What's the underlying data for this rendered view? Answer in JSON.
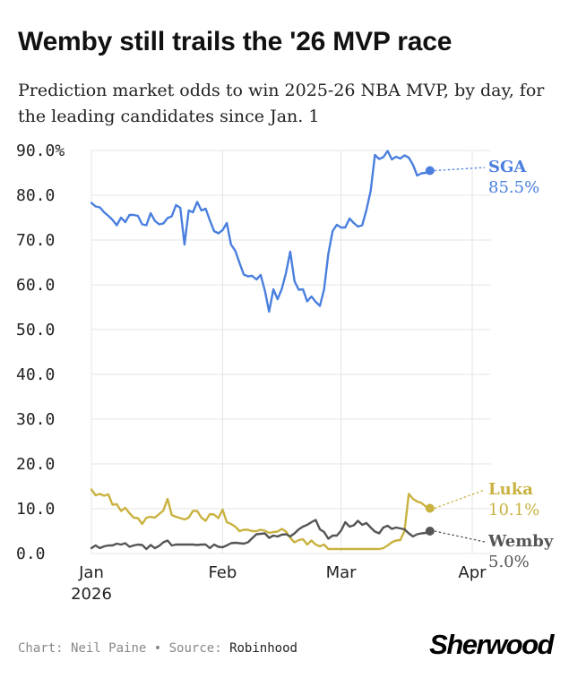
{
  "page": {
    "title": "Wemby still trails the '26 MVP race",
    "subtitle": "Prediction market odds to win 2025-26 NBA MVP, by day, for the leading candidates since Jan. 1",
    "credit_label": "Chart:",
    "credit_name": "Neil Paine",
    "separator": "•",
    "source_label": "Source:",
    "source_name": "Robinhood",
    "brand": "Sherwood"
  },
  "chart_data": {
    "type": "line",
    "title": "Wemby still trails the '26 MVP race",
    "ylim": [
      0,
      90
    ],
    "y_ticks": [
      {
        "value": 0,
        "label": "0.0"
      },
      {
        "value": 10,
        "label": "10.0"
      },
      {
        "value": 20,
        "label": "20.0"
      },
      {
        "value": 30,
        "label": "30.0"
      },
      {
        "value": 40,
        "label": "40.0"
      },
      {
        "value": 50,
        "label": "50.0"
      },
      {
        "value": 60,
        "label": "60.0"
      },
      {
        "value": 70,
        "label": "70.0"
      },
      {
        "value": 80,
        "label": "80.0"
      },
      {
        "value": 90,
        "label": "90.0%"
      }
    ],
    "x_unit": "day of 2026 (Jan 1 = 0)",
    "xlim": [
      0,
      90
    ],
    "x_ticks": [
      {
        "value": 0,
        "label": "Jan",
        "sublabel": "2026"
      },
      {
        "value": 31,
        "label": "Feb",
        "sublabel": ""
      },
      {
        "value": 59,
        "label": "Mar",
        "sublabel": ""
      },
      {
        "value": 90,
        "label": "Apr",
        "sublabel": ""
      }
    ],
    "series": [
      {
        "name": "SGA",
        "color": "#4a7fde",
        "end_label": "SGA",
        "end_value": "85.5%",
        "points": [
          [
            0,
            78.3
          ],
          [
            1,
            77.5
          ],
          [
            2,
            77.3
          ],
          [
            3,
            76.2
          ],
          [
            4,
            75.4
          ],
          [
            5,
            74.5
          ],
          [
            6,
            73.3
          ],
          [
            7,
            75.0
          ],
          [
            8,
            74.0
          ],
          [
            9,
            75.6
          ],
          [
            10,
            75.6
          ],
          [
            11,
            75.4
          ],
          [
            12,
            73.5
          ],
          [
            13,
            73.3
          ],
          [
            14,
            76.0
          ],
          [
            15,
            74.3
          ],
          [
            16,
            73.5
          ],
          [
            17,
            73.7
          ],
          [
            18,
            74.9
          ],
          [
            19,
            75.3
          ],
          [
            20,
            77.8
          ],
          [
            21,
            77.2
          ],
          [
            22,
            69.0
          ],
          [
            23,
            76.6
          ],
          [
            24,
            76.2
          ],
          [
            25,
            78.5
          ],
          [
            26,
            76.6
          ],
          [
            27,
            77.0
          ],
          [
            28,
            74.4
          ],
          [
            29,
            72.0
          ],
          [
            30,
            71.5
          ],
          [
            31,
            72.2
          ],
          [
            32,
            73.8
          ],
          [
            33,
            69.0
          ],
          [
            34,
            67.6
          ],
          [
            35,
            64.9
          ],
          [
            36,
            62.3
          ],
          [
            37,
            61.9
          ],
          [
            38,
            62.0
          ],
          [
            39,
            61.2
          ],
          [
            40,
            62.2
          ],
          [
            41,
            58.7
          ],
          [
            42,
            54.0
          ],
          [
            43,
            59.0
          ],
          [
            44,
            56.8
          ],
          [
            45,
            59.1
          ],
          [
            46,
            62.7
          ],
          [
            47,
            67.4
          ],
          [
            48,
            60.8
          ],
          [
            49,
            58.9
          ],
          [
            50,
            59.0
          ],
          [
            51,
            56.3
          ],
          [
            52,
            57.4
          ],
          [
            53,
            56.2
          ],
          [
            54,
            55.3
          ],
          [
            55,
            59.0
          ],
          [
            56,
            66.9
          ],
          [
            57,
            72.0
          ],
          [
            58,
            73.4
          ],
          [
            59,
            72.8
          ],
          [
            60,
            72.8
          ],
          [
            61,
            74.8
          ],
          [
            62,
            73.8
          ],
          [
            63,
            73.0
          ],
          [
            64,
            73.3
          ],
          [
            65,
            76.7
          ],
          [
            66,
            81.0
          ],
          [
            67,
            89.0
          ],
          [
            68,
            88.1
          ],
          [
            69,
            88.5
          ],
          [
            70,
            89.9
          ],
          [
            71,
            88.0
          ],
          [
            72,
            88.6
          ],
          [
            73,
            88.2
          ],
          [
            74,
            88.9
          ],
          [
            75,
            88.4
          ],
          [
            76,
            86.8
          ],
          [
            77,
            84.4
          ],
          [
            78,
            84.9
          ],
          [
            79,
            85.0
          ],
          [
            80,
            85.5
          ]
        ]
      },
      {
        "name": "Luka",
        "color": "#c9b240",
        "end_label": "Luka",
        "end_value": "10.1%",
        "points": [
          [
            0,
            14.3
          ],
          [
            1,
            13.0
          ],
          [
            2,
            13.3
          ],
          [
            3,
            12.9
          ],
          [
            4,
            13.2
          ],
          [
            5,
            10.9
          ],
          [
            6,
            11.0
          ],
          [
            7,
            9.5
          ],
          [
            8,
            10.2
          ],
          [
            9,
            9.0
          ],
          [
            10,
            8.0
          ],
          [
            11,
            7.9
          ],
          [
            12,
            6.6
          ],
          [
            13,
            8.0
          ],
          [
            14,
            8.2
          ],
          [
            15,
            8.0
          ],
          [
            16,
            8.8
          ],
          [
            17,
            9.6
          ],
          [
            18,
            12.2
          ],
          [
            19,
            8.6
          ],
          [
            20,
            8.2
          ],
          [
            21,
            7.9
          ],
          [
            22,
            7.6
          ],
          [
            23,
            8.0
          ],
          [
            24,
            9.5
          ],
          [
            25,
            9.5
          ],
          [
            26,
            8.0
          ],
          [
            27,
            7.3
          ],
          [
            28,
            8.8
          ],
          [
            29,
            8.7
          ],
          [
            30,
            7.9
          ],
          [
            31,
            9.8
          ],
          [
            32,
            7.0
          ],
          [
            33,
            6.6
          ],
          [
            34,
            6.0
          ],
          [
            35,
            5.0
          ],
          [
            36,
            5.3
          ],
          [
            37,
            5.3
          ],
          [
            38,
            5.0
          ],
          [
            39,
            5.0
          ],
          [
            40,
            5.3
          ],
          [
            41,
            5.1
          ],
          [
            42,
            4.6
          ],
          [
            43,
            4.8
          ],
          [
            44,
            4.9
          ],
          [
            45,
            5.5
          ],
          [
            46,
            4.9
          ],
          [
            47,
            3.5
          ],
          [
            48,
            2.5
          ],
          [
            49,
            3.0
          ],
          [
            50,
            3.2
          ],
          [
            51,
            2.0
          ],
          [
            52,
            2.9
          ],
          [
            53,
            2.0
          ],
          [
            54,
            1.6
          ],
          [
            55,
            2.0
          ],
          [
            56,
            1.0
          ],
          [
            57,
            1.0
          ],
          [
            58,
            1.0
          ],
          [
            59,
            1.0
          ],
          [
            60,
            1.0
          ],
          [
            61,
            1.0
          ],
          [
            62,
            1.0
          ],
          [
            63,
            1.0
          ],
          [
            64,
            1.0
          ],
          [
            65,
            1.0
          ],
          [
            66,
            1.0
          ],
          [
            67,
            1.0
          ],
          [
            68,
            1.0
          ],
          [
            69,
            1.2
          ],
          [
            70,
            1.8
          ],
          [
            71,
            2.5
          ],
          [
            72,
            2.9
          ],
          [
            73,
            3.0
          ],
          [
            74,
            5.0
          ],
          [
            75,
            13.3
          ],
          [
            76,
            12.2
          ],
          [
            77,
            11.6
          ],
          [
            78,
            11.3
          ],
          [
            79,
            10.5
          ],
          [
            80,
            10.1
          ]
        ]
      },
      {
        "name": "Wemby",
        "color": "#555555",
        "end_label": "Wemby",
        "end_value": "5.0%",
        "points": [
          [
            0,
            1.2
          ],
          [
            1,
            1.8
          ],
          [
            2,
            1.2
          ],
          [
            3,
            1.6
          ],
          [
            4,
            1.8
          ],
          [
            5,
            1.8
          ],
          [
            6,
            2.2
          ],
          [
            7,
            2.0
          ],
          [
            8,
            2.3
          ],
          [
            9,
            1.5
          ],
          [
            10,
            1.8
          ],
          [
            11,
            2.0
          ],
          [
            12,
            1.9
          ],
          [
            13,
            1.0
          ],
          [
            14,
            1.9
          ],
          [
            15,
            1.2
          ],
          [
            16,
            1.7
          ],
          [
            17,
            2.5
          ],
          [
            18,
            2.9
          ],
          [
            19,
            1.8
          ],
          [
            20,
            2.0
          ],
          [
            21,
            2.0
          ],
          [
            22,
            2.0
          ],
          [
            23,
            2.0
          ],
          [
            24,
            2.0
          ],
          [
            25,
            1.9
          ],
          [
            26,
            2.0
          ],
          [
            27,
            2.0
          ],
          [
            28,
            1.2
          ],
          [
            29,
            2.0
          ],
          [
            30,
            1.5
          ],
          [
            31,
            1.4
          ],
          [
            32,
            1.8
          ],
          [
            33,
            2.3
          ],
          [
            34,
            2.4
          ],
          [
            35,
            2.3
          ],
          [
            36,
            2.2
          ],
          [
            37,
            2.5
          ],
          [
            38,
            3.4
          ],
          [
            39,
            4.3
          ],
          [
            40,
            4.4
          ],
          [
            41,
            4.5
          ],
          [
            42,
            3.5
          ],
          [
            43,
            4.0
          ],
          [
            44,
            3.8
          ],
          [
            45,
            4.2
          ],
          [
            46,
            4.3
          ],
          [
            47,
            3.8
          ],
          [
            48,
            4.5
          ],
          [
            49,
            5.4
          ],
          [
            50,
            6.0
          ],
          [
            51,
            6.4
          ],
          [
            52,
            7.0
          ],
          [
            53,
            7.5
          ],
          [
            54,
            5.4
          ],
          [
            55,
            4.8
          ],
          [
            56,
            3.3
          ],
          [
            57,
            4.0
          ],
          [
            58,
            4.0
          ],
          [
            59,
            5.1
          ],
          [
            60,
            7.0
          ],
          [
            61,
            6.0
          ],
          [
            62,
            6.3
          ],
          [
            63,
            7.3
          ],
          [
            64,
            6.4
          ],
          [
            65,
            6.8
          ],
          [
            66,
            5.8
          ],
          [
            67,
            4.9
          ],
          [
            68,
            4.5
          ],
          [
            69,
            5.8
          ],
          [
            70,
            6.2
          ],
          [
            71,
            5.5
          ],
          [
            72,
            5.8
          ],
          [
            73,
            5.6
          ],
          [
            74,
            5.4
          ],
          [
            75,
            4.5
          ],
          [
            76,
            3.8
          ],
          [
            77,
            4.3
          ],
          [
            78,
            4.5
          ],
          [
            79,
            4.6
          ],
          [
            80,
            5.0
          ]
        ]
      }
    ]
  }
}
